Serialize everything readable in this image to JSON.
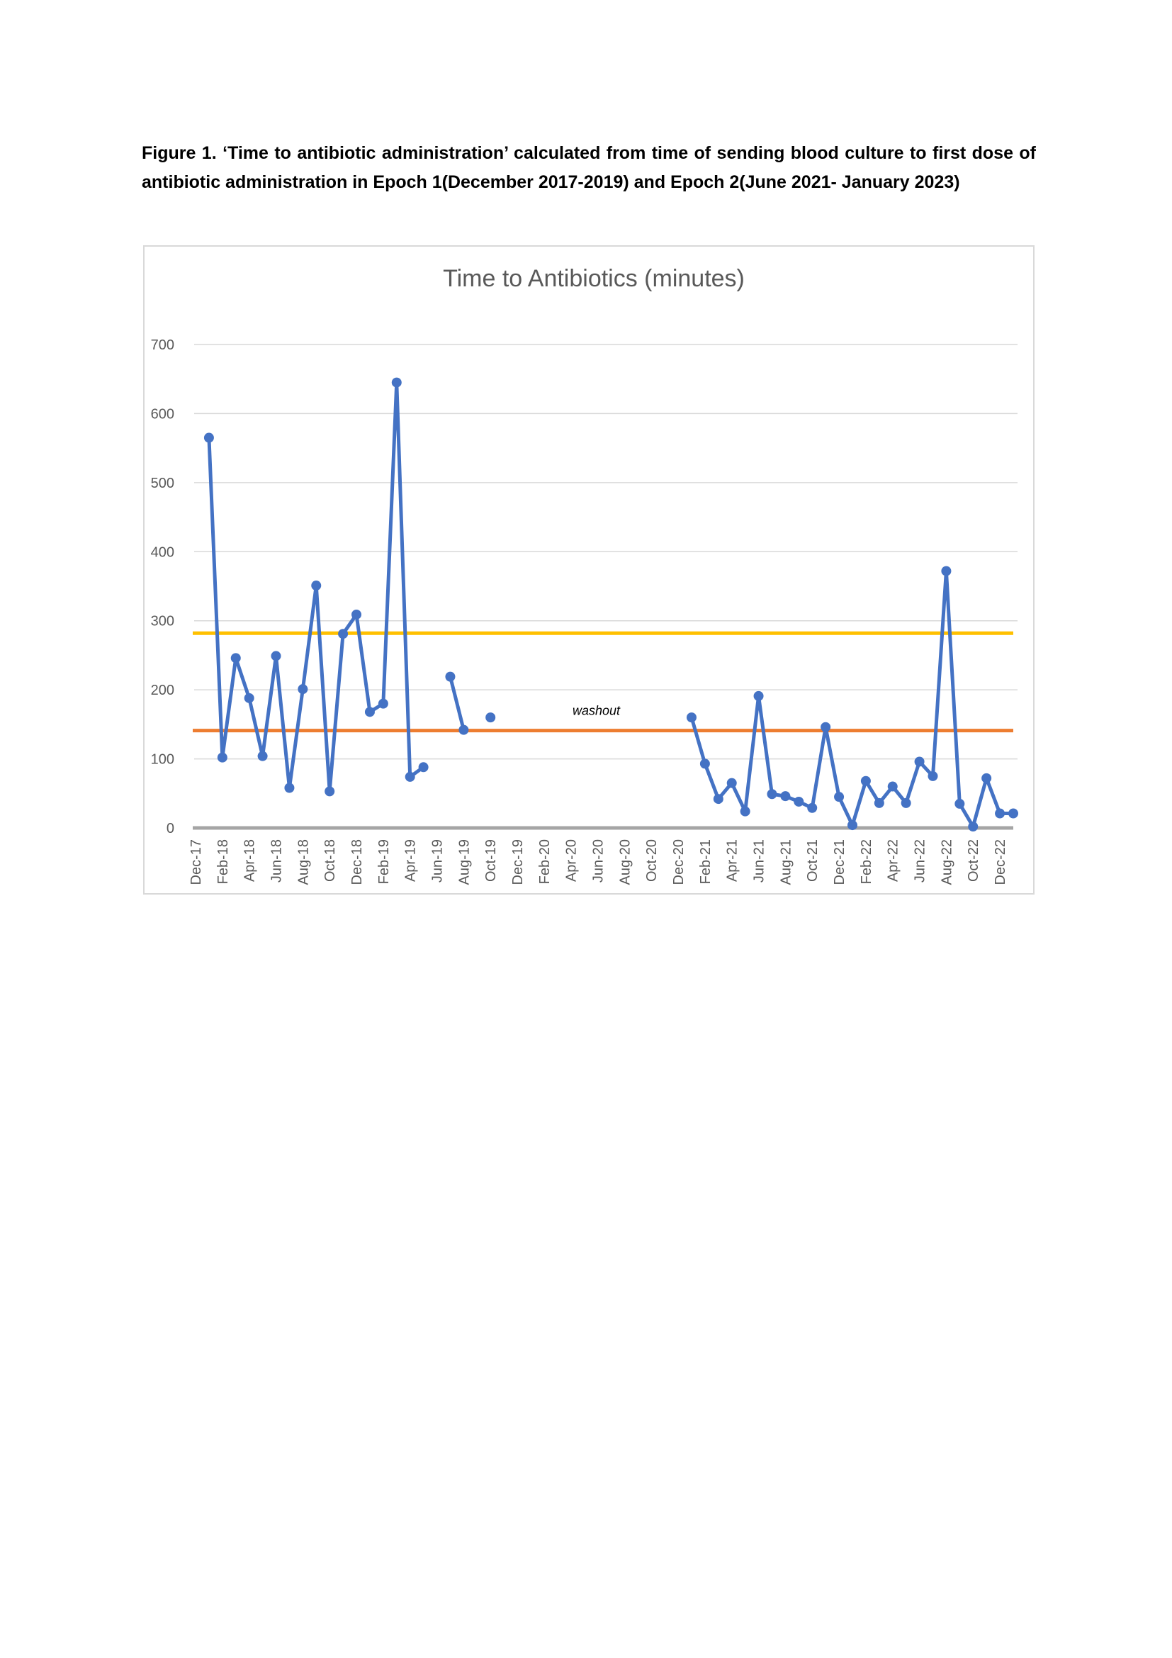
{
  "figure": {
    "caption": "Figure 1. ‘Time to antibiotic administration’ calculated from time of sending blood culture to first dose of antibiotic administration in Epoch 1(December 2017-2019) and Epoch 2(June 2021- January 2023)"
  },
  "chart_data": {
    "type": "line",
    "title": "Time to Antibiotics (minutes)",
    "xlabel": "",
    "ylabel": "",
    "ylim": [
      0,
      700
    ],
    "yticks": [
      0,
      100,
      200,
      300,
      400,
      500,
      600,
      700
    ],
    "grid": true,
    "legend": "none",
    "categories": [
      "Dec-17",
      "Jan-18",
      "Feb-18",
      "Mar-18",
      "Apr-18",
      "May-18",
      "Jun-18",
      "Jul-18",
      "Aug-18",
      "Sep-18",
      "Oct-18",
      "Nov-18",
      "Dec-18",
      "Jan-19",
      "Feb-19",
      "Mar-19",
      "Apr-19",
      "May-19",
      "Jun-19",
      "Jul-19",
      "Aug-19",
      "Sep-19",
      "Oct-19",
      "Nov-19",
      "Dec-19",
      "Jan-20",
      "Feb-20",
      "Mar-20",
      "Apr-20",
      "May-20",
      "Jun-20",
      "Jul-20",
      "Aug-20",
      "Sep-20",
      "Oct-20",
      "Nov-20",
      "Dec-20",
      "Jan-21",
      "Feb-21",
      "Mar-21",
      "Apr-21",
      "May-21",
      "Jun-21",
      "Jul-21",
      "Aug-21",
      "Sep-21",
      "Oct-21",
      "Nov-21",
      "Dec-21",
      "Jan-22",
      "Feb-22",
      "Mar-22",
      "Apr-22",
      "May-22",
      "Jun-22",
      "Jul-22",
      "Aug-22",
      "Sep-22",
      "Oct-22",
      "Nov-22",
      "Dec-22",
      "Jan-23"
    ],
    "tick_labels": [
      "Dec-17",
      "Feb-18",
      "Apr-18",
      "Jun-18",
      "Aug-18",
      "Oct-18",
      "Dec-18",
      "Feb-19",
      "Apr-19",
      "Jun-19",
      "Aug-19",
      "Oct-19",
      "Dec-19",
      "Feb-20",
      "Apr-20",
      "Jun-20",
      "Aug-20",
      "Oct-20",
      "Dec-20",
      "Feb-21",
      "Apr-21",
      "Jun-21",
      "Aug-21",
      "Oct-21",
      "Dec-21",
      "Feb-22",
      "Apr-22",
      "Jun-22",
      "Aug-22",
      "Oct-22",
      "Dec-22"
    ],
    "series": [
      {
        "color": "#4472c4",
        "values": [
          null,
          565,
          102,
          246,
          188,
          104,
          249,
          58,
          201,
          351,
          53,
          281,
          309,
          168,
          180,
          645,
          74,
          88,
          null,
          219,
          142,
          null,
          160,
          null,
          null,
          null,
          null,
          null,
          null,
          null,
          null,
          null,
          null,
          null,
          null,
          null,
          null,
          160,
          93,
          42,
          65,
          24,
          191,
          49,
          46,
          38,
          29,
          146,
          45,
          4,
          68,
          36,
          60,
          36,
          96,
          75,
          372,
          35,
          2,
          72,
          21,
          21
        ]
      }
    ],
    "reference_lines": [
      {
        "value": 282,
        "color": "#ffc000"
      },
      {
        "value": 141,
        "color": "#ed7d31"
      },
      {
        "value": 0,
        "color": "#a5a5a5"
      }
    ],
    "annotations": [
      {
        "text": "washout",
        "x": "Jun-20",
        "y": 170
      }
    ]
  }
}
